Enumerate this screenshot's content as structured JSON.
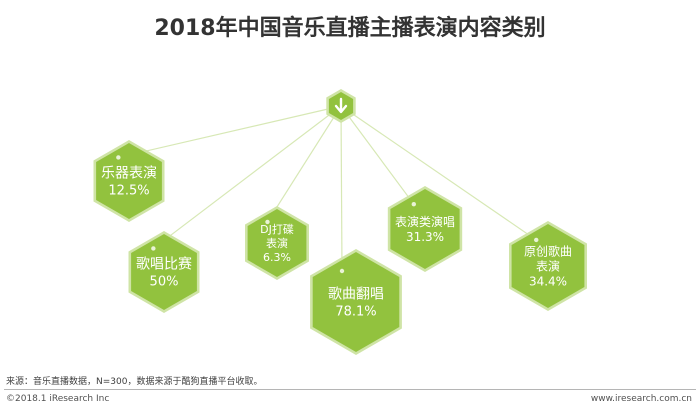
{
  "title": "2018年中国音乐直播主播表演内容类别",
  "chart_data": {
    "type": "diagram",
    "title": "2018年中国音乐直播主播表演内容类别",
    "items": [
      {
        "label_lines": [
          "乐器表演"
        ],
        "value": "12.5%"
      },
      {
        "label_lines": [
          "歌唱比赛"
        ],
        "value": "50%"
      },
      {
        "label_lines": [
          "DJ打碟",
          "表演"
        ],
        "value": "6.3%"
      },
      {
        "label_lines": [
          "歌曲翻唱"
        ],
        "value": "78.1%"
      },
      {
        "label_lines": [
          "表演类演唱"
        ],
        "value": "31.3%"
      },
      {
        "label_lines": [
          "原创歌曲",
          "表演"
        ],
        "value": "34.4%"
      }
    ],
    "colors": {
      "hex_fill": "#92c23e",
      "hex_stroke": "#cfe4a6",
      "connector": "#d7e8b5",
      "text": "#ffffff"
    },
    "hub_icon": "down-arrow-icon"
  },
  "footer": {
    "source": "来源：音乐直播数据，N=300，数据来源于酷狗直播平台收取。",
    "copyright": "©2018.1 iResearch Inc",
    "website": "www.iresearch.com.cn"
  }
}
